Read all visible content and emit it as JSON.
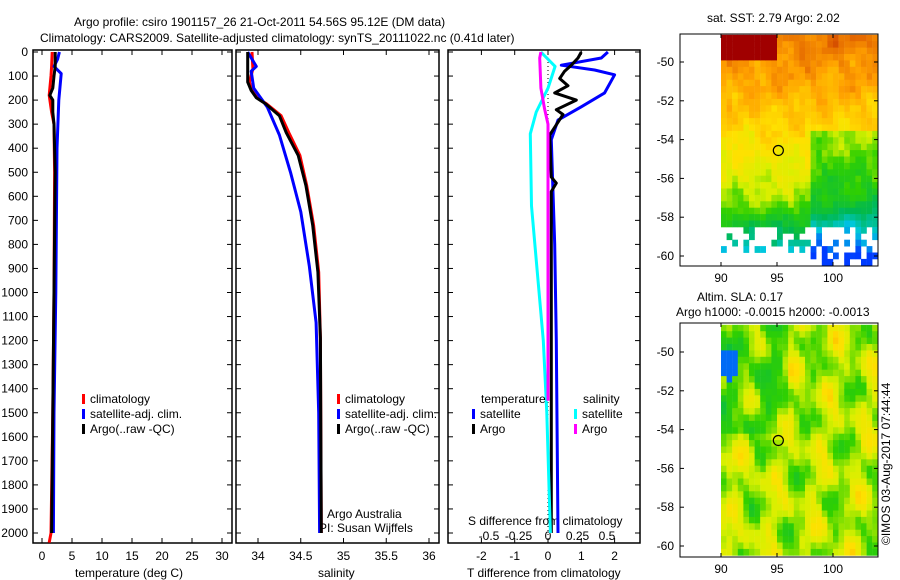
{
  "title": {
    "line1": "Argo profile: csiro 1901157_26 21-Oct-2011 54.56S 95.12E (DM data)",
    "line2": "Climatology: CARS2009. Satellite-adjusted climatology: synTS_20111022.nc (0.41d later)"
  },
  "colors": {
    "climatology": "#ff0000",
    "satellite": "#0000ff",
    "argo": "#000000",
    "sal_satellite": "#00ffff",
    "sal_argo": "#ff00ff"
  },
  "credits": {
    "line1": "Argo Australia",
    "line2": "PI: Susan Wijffels"
  },
  "stamp": "©IMOS 03-Aug-2017 07:44:44",
  "chart_data": [
    {
      "type": "line",
      "title": "",
      "xlabel": "temperature (deg C)",
      "ylabel": "",
      "xlim": [
        -1.5,
        31.5
      ],
      "ylim": [
        2040,
        0
      ],
      "xticks": [
        "0",
        "5",
        "10",
        "15",
        "20",
        "25",
        "30"
      ],
      "yticks": [
        "0",
        "100",
        "200",
        "300",
        "400",
        "500",
        "600",
        "700",
        "800",
        "900",
        "1000",
        "1100",
        "1200",
        "1300",
        "1400",
        "1500",
        "1600",
        "1700",
        "1800",
        "1900",
        "2000"
      ],
      "legend": [
        "climatology",
        "satellite-adj. clim.",
        "Argo(..raw -QC)"
      ],
      "legend_position": "lower-center",
      "series": [
        {
          "name": "climatology",
          "depth": [
            0,
            60,
            100,
            180,
            250,
            300,
            500,
            1000,
            1500,
            2000,
            2040
          ],
          "values": [
            1.7,
            1.6,
            1.5,
            1.2,
            1.6,
            2.0,
            2.1,
            2.0,
            1.8,
            1.5,
            1.2
          ]
        },
        {
          "name": "satellite-adj. clim.",
          "depth": [
            0,
            30,
            60,
            90,
            200,
            400,
            1000,
            1500,
            2000
          ],
          "values": [
            2.9,
            2.6,
            2.0,
            3.2,
            2.8,
            2.5,
            2.3,
            2.0,
            1.9
          ]
        },
        {
          "name": "Argo(..raw -QC)",
          "depth": [
            0,
            60,
            100,
            150,
            180,
            200,
            250,
            300,
            500,
            1000,
            1500,
            2000
          ],
          "values": [
            2.2,
            2.2,
            2.0,
            1.8,
            1.3,
            1.8,
            1.8,
            2.0,
            2.2,
            2.0,
            1.8,
            1.6
          ]
        }
      ]
    },
    {
      "type": "line",
      "xlabel": "salinity",
      "xlim": [
        33.75,
        36.05
      ],
      "ylim": [
        2040,
        0
      ],
      "xticks": [
        "34",
        "34.5",
        "35",
        "35.5",
        "36"
      ],
      "legend": [
        "climatology",
        "satellite-adj. clim.",
        "Argo(..raw -QC)"
      ],
      "legend_position": "lower-right",
      "series": [
        {
          "name": "climatology",
          "depth": [
            0,
            70,
            125,
            160,
            190,
            216,
            265,
            335,
            430,
            555,
            720,
            915,
            1190,
            2000
          ],
          "values": [
            33.93,
            33.94,
            33.9,
            33.93,
            33.99,
            34.1,
            34.27,
            34.36,
            34.49,
            34.57,
            34.65,
            34.71,
            34.73,
            34.74
          ]
        },
        {
          "name": "satellite-adj. clim.",
          "depth": [
            0,
            60,
            80,
            150,
            230,
            345,
            500,
            665,
            890,
            1125,
            1500,
            2000
          ],
          "values": [
            33.88,
            33.98,
            33.92,
            33.95,
            34.11,
            34.25,
            34.38,
            34.5,
            34.6,
            34.68,
            34.71,
            34.72
          ]
        },
        {
          "name": "Argo(..raw -QC)",
          "depth": [
            0,
            125,
            160,
            190,
            216,
            265,
            335,
            430,
            555,
            720,
            915,
            1190,
            2000
          ],
          "values": [
            33.88,
            33.88,
            33.92,
            33.98,
            34.09,
            34.25,
            34.33,
            34.47,
            34.56,
            34.64,
            34.7,
            34.73,
            34.74
          ]
        }
      ]
    },
    {
      "type": "line",
      "xlabel": "T difference from climatology",
      "xlabel2": "S difference from climatology",
      "xlim": [
        -3,
        2.8
      ],
      "ylim": [
        2040,
        0
      ],
      "xticks": [
        "-2",
        "-1",
        "0",
        "1",
        "2"
      ],
      "xticks2": [
        "-0.5",
        "-0.25",
        "0",
        "0.25",
        "0.5"
      ],
      "legend_groups": [
        {
          "title": "temperature",
          "items": [
            "satellite",
            "Argo"
          ]
        },
        {
          "title": "salinity",
          "items": [
            "satellite",
            "Argo"
          ]
        }
      ],
      "series": [
        {
          "name": "temperature satellite",
          "axis": "T",
          "depth": [
            0,
            25,
            55,
            75,
            95,
            170,
            228,
            283,
            365,
            800,
            1200,
            2000
          ],
          "values": [
            1.8,
            1.6,
            0.4,
            1.4,
            2.0,
            1.7,
            1.0,
            0.3,
            0.1,
            0.2,
            0.25,
            0.3
          ]
        },
        {
          "name": "temperature Argo",
          "axis": "T",
          "depth": [
            0,
            25,
            55,
            80,
            110,
            140,
            170,
            200,
            240,
            260,
            345,
            520,
            545,
            580,
            1000,
            2000
          ],
          "values": [
            1.0,
            0.9,
            0.7,
            0.5,
            0.35,
            0.6,
            0.2,
            0.85,
            0.25,
            0.45,
            0.05,
            0.1,
            0.25,
            0.1,
            0.1,
            0.1
          ]
        },
        {
          "name": "salinity satellite",
          "axis": "S",
          "depth": [
            0,
            60,
            150,
            250,
            340,
            640,
            920,
            1200,
            1500,
            2000
          ],
          "values": [
            -0.06,
            0.06,
            0.0,
            -0.1,
            -0.15,
            -0.14,
            -0.09,
            -0.04,
            -0.01,
            0.02
          ]
        },
        {
          "name": "salinity Argo",
          "axis": "S",
          "depth": [
            0,
            25,
            150,
            235,
            300,
            600,
            1000,
            1450
          ],
          "values": [
            -0.06,
            -0.07,
            -0.06,
            -0.03,
            0.0,
            0.0,
            0.0,
            0.0
          ]
        }
      ]
    },
    {
      "type": "heatmap",
      "title": "sat. SST: 2.79 Argo: 2.02",
      "xticks": [
        "90",
        "95",
        "100"
      ],
      "yticks": [
        "-50",
        "-52",
        "-54",
        "-56",
        "-58",
        "-60"
      ],
      "argo_position": {
        "lon": 95.12,
        "lat": -54.56
      }
    },
    {
      "type": "heatmap",
      "title": "Altim. SLA: 0.17",
      "subtitle": "Argo h1000: -0.0015 h2000: -0.0013",
      "xticks": [
        "90",
        "95",
        "100"
      ],
      "yticks": [
        "-50",
        "-52",
        "-54",
        "-56",
        "-58",
        "-60"
      ],
      "argo_position": {
        "lon": 95.12,
        "lat": -54.56
      }
    }
  ]
}
